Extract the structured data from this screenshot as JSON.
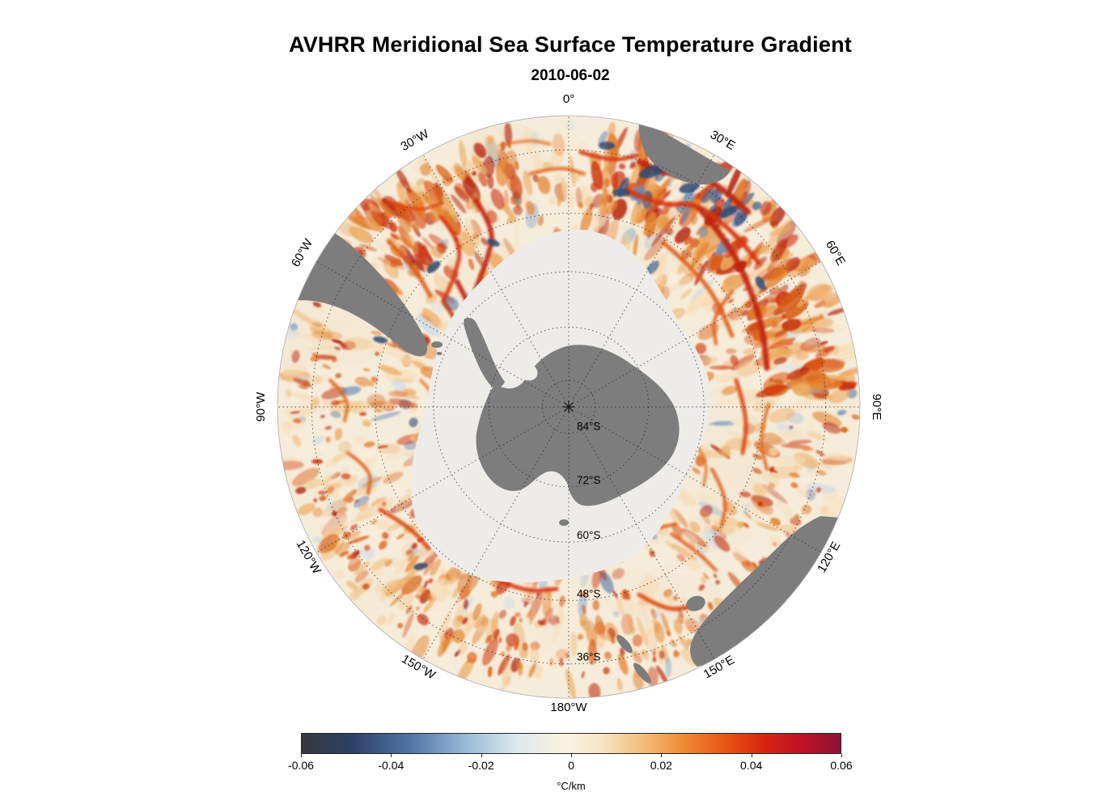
{
  "header": {
    "title": "AVHRR Meridional Sea Surface Temperature Gradient",
    "date": "2010-06-02"
  },
  "map": {
    "projection": "south polar stereographic",
    "outer_lat": -30,
    "lon_labels": [
      {
        "bearing": 0,
        "label": "0°"
      },
      {
        "bearing": 30,
        "label": "30°E"
      },
      {
        "bearing": 60,
        "label": "60°E"
      },
      {
        "bearing": 90,
        "label": "90°E"
      },
      {
        "bearing": 120,
        "label": "120°E"
      },
      {
        "bearing": 150,
        "label": "150°E"
      },
      {
        "bearing": 180,
        "label": "180°W"
      },
      {
        "bearing": 210,
        "label": "150°W"
      },
      {
        "bearing": 240,
        "label": "120°W"
      },
      {
        "bearing": 270,
        "label": "90°W"
      },
      {
        "bearing": 300,
        "label": "60°W"
      },
      {
        "bearing": 330,
        "label": "30°W"
      }
    ],
    "lat_rings": [
      {
        "lat": -84,
        "label": "84°S"
      },
      {
        "lat": -72,
        "label": "72°S"
      },
      {
        "lat": -60,
        "label": "60°S"
      },
      {
        "lat": -48,
        "label": "48°S"
      },
      {
        "lat": -36,
        "label": "36°S"
      }
    ],
    "colors": {
      "ocean": "#f6ecda",
      "ice": "#edece8",
      "land": "#7d7d7d",
      "graticule": "#222222",
      "warm_palette": [
        "#f6ddb8",
        "#f2c78e",
        "#eca95e",
        "#e4842f",
        "#da5d15",
        "#cd340b",
        "#b5200a"
      ],
      "cool_palette": [
        "#ccdbe8",
        "#9db9d4",
        "#6c8fb8",
        "#3d618f",
        "#2a4572"
      ]
    }
  },
  "colorbar": {
    "min": -0.06,
    "max": 0.06,
    "ticks": [
      "-0.06",
      "-0.04",
      "-0.02",
      "0",
      "0.02",
      "0.04",
      "0.06"
    ],
    "unit": "°C/km",
    "stops": [
      [
        0.0,
        "#36383d"
      ],
      [
        0.09,
        "#2c3f66"
      ],
      [
        0.2,
        "#4f74a6"
      ],
      [
        0.31,
        "#9dbdd8"
      ],
      [
        0.4,
        "#dde9ec"
      ],
      [
        0.47,
        "#f4f1e2"
      ],
      [
        0.5,
        "#f7f1df"
      ],
      [
        0.55,
        "#f8e6c6"
      ],
      [
        0.63,
        "#f5bf7e"
      ],
      [
        0.71,
        "#ee8a33"
      ],
      [
        0.79,
        "#e55313"
      ],
      [
        0.86,
        "#d6250e"
      ],
      [
        0.93,
        "#bd1227"
      ],
      [
        1.0,
        "#8c1336"
      ]
    ]
  }
}
